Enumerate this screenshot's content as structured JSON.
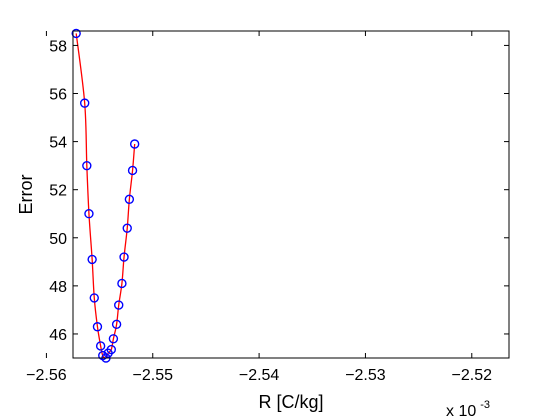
{
  "chart_data": {
    "type": "line",
    "title": "",
    "xlabel": "R [C/kg]",
    "ylabel": "Error",
    "x_multiplier": {
      "base": "x 10",
      "exponent": "-3"
    },
    "xlim": [
      -2.5575,
      -2.5165
    ],
    "ylim": [
      45,
      58.6
    ],
    "x_ticks": [
      -2.56,
      -2.55,
      -2.54,
      -2.53,
      -2.52
    ],
    "y_ticks": [
      46,
      48,
      50,
      52,
      54,
      56,
      58
    ],
    "grid": false,
    "legend": "none",
    "series": [
      {
        "style": "markers",
        "marker": "circle",
        "color": "#0000ff",
        "x": [
          -2.5572,
          -2.5564,
          -2.5562,
          -2.556,
          -2.5557,
          -2.5555,
          -2.5552,
          -2.5549,
          -2.5547,
          -2.5544,
          -2.5542,
          -2.5539,
          -2.5537,
          -2.5534,
          -2.5532,
          -2.5529,
          -2.5527,
          -2.5524,
          -2.5522,
          -2.5519,
          -2.5517
        ],
        "y": [
          58.5,
          55.6,
          53.0,
          51.0,
          49.1,
          47.5,
          46.3,
          45.5,
          45.1,
          45.0,
          45.2,
          45.35,
          45.8,
          46.4,
          47.2,
          48.1,
          49.2,
          50.4,
          51.6,
          52.8,
          53.9
        ]
      },
      {
        "style": "line",
        "color": "#ff0000",
        "x": [
          -2.5572,
          -2.5564,
          -2.5562,
          -2.556,
          -2.5557,
          -2.5555,
          -2.5552,
          -2.5549,
          -2.5547,
          -2.5544,
          -2.5542,
          -2.5539,
          -2.5537,
          -2.5534,
          -2.5532,
          -2.5529,
          -2.5527,
          -2.5524,
          -2.5522,
          -2.5519,
          -2.5517
        ],
        "y": [
          58.5,
          55.6,
          53.0,
          51.0,
          49.1,
          47.5,
          46.3,
          45.5,
          45.1,
          45.0,
          45.2,
          45.35,
          45.8,
          46.4,
          47.2,
          48.1,
          49.2,
          50.4,
          51.6,
          52.8,
          53.9
        ]
      }
    ]
  }
}
